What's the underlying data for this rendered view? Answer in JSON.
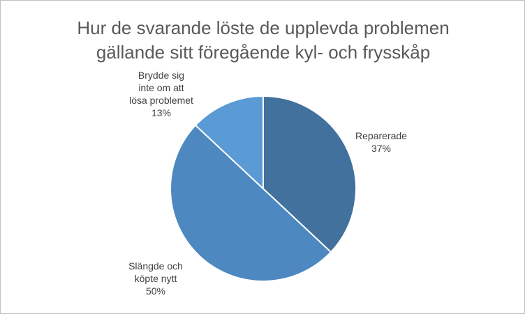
{
  "chart_data": {
    "type": "pie",
    "title": [
      "Hur de svarande löste de upplevda problemen",
      "gällande sitt föregående kyl- och frysskåp"
    ],
    "categories": [
      "Reparerade",
      "Slängde och köpte nytt",
      "Brydde sig inte om att lösa problemet"
    ],
    "values": [
      37,
      50,
      13
    ],
    "value_labels": [
      "37%",
      "50%",
      "13%"
    ],
    "colors": [
      "#41719c",
      "#4e88c0",
      "#5b9bd5"
    ]
  }
}
